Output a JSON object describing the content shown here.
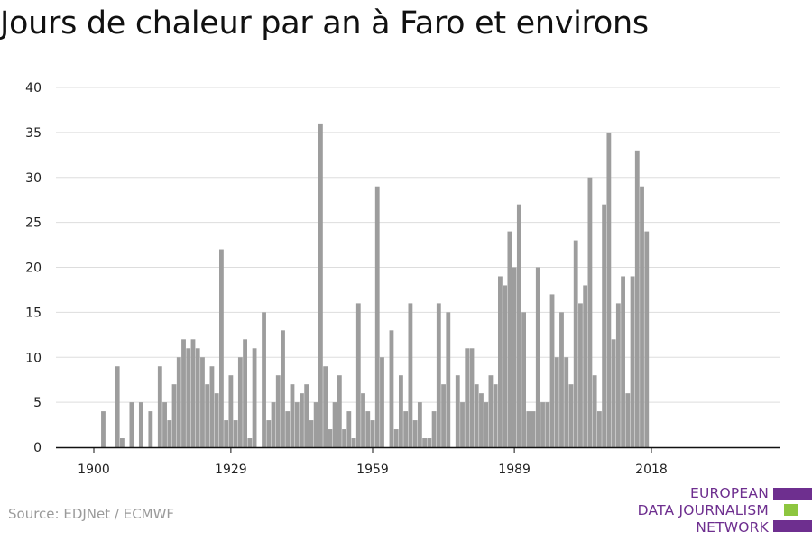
{
  "chart_data": {
    "type": "bar",
    "title": "Jours de chaleur par an à Faro et environs",
    "xlabel": "",
    "ylabel": "",
    "ylim": [
      0,
      40
    ],
    "yticks": [
      0,
      5,
      10,
      15,
      20,
      25,
      30,
      35,
      40
    ],
    "xticks": [
      1900,
      1929,
      1959,
      1989,
      2018
    ],
    "grid": true,
    "bar_color": "#9d9d9d",
    "series": [
      {
        "x": [
          1900,
          1901,
          1902,
          1903,
          1904,
          1905,
          1906,
          1907,
          1908,
          1909,
          1910,
          1911,
          1912,
          1913,
          1914,
          1915,
          1916,
          1917,
          1918,
          1919,
          1920,
          1921,
          1922,
          1923,
          1924,
          1925,
          1926,
          1927,
          1928,
          1929,
          1930,
          1931,
          1932,
          1933,
          1934,
          1935,
          1936,
          1937,
          1938,
          1939,
          1940,
          1941,
          1942,
          1943,
          1944,
          1945,
          1946,
          1947,
          1948,
          1949,
          1950,
          1951,
          1952,
          1953,
          1954,
          1955,
          1956,
          1957,
          1958,
          1959,
          1960,
          1961,
          1962,
          1963,
          1964,
          1965,
          1966,
          1967,
          1968,
          1969,
          1970,
          1971,
          1972,
          1973,
          1974,
          1975,
          1976,
          1977,
          1978,
          1979,
          1980,
          1981,
          1982,
          1983,
          1984,
          1985,
          1986,
          1987,
          1988,
          1989,
          1990,
          1991,
          1992,
          1993,
          1994,
          1995,
          1996,
          1997,
          1998,
          1999,
          2000,
          2001,
          2002,
          2003,
          2004,
          2005,
          2006,
          2007,
          2008,
          2009,
          2010,
          2011,
          2012,
          2013,
          2014,
          2015,
          2016,
          2017,
          2018,
          2019,
          2020
        ],
        "values": [
          0,
          0,
          4,
          0,
          0,
          9,
          1,
          0,
          5,
          0,
          5,
          0,
          4,
          0,
          9,
          5,
          3,
          7,
          10,
          12,
          11,
          12,
          11,
          10,
          7,
          9,
          6,
          22,
          3,
          8,
          3,
          10,
          12,
          1,
          11,
          0,
          15,
          3,
          5,
          8,
          13,
          4,
          7,
          5,
          6,
          7,
          3,
          5,
          36,
          9,
          2,
          5,
          8,
          2,
          4,
          1,
          16,
          6,
          4,
          3,
          29,
          10,
          0,
          13,
          2,
          8,
          4,
          16,
          3,
          5,
          1,
          1,
          4,
          16,
          7,
          15,
          0,
          8,
          5,
          11,
          11,
          7,
          6,
          5,
          8,
          7,
          19,
          18,
          24,
          20,
          27,
          15,
          4,
          4,
          20,
          5,
          5,
          17,
          10,
          15,
          10,
          7,
          23,
          16,
          18,
          30,
          8,
          4,
          27,
          35,
          12,
          16,
          19,
          6,
          19,
          33,
          29,
          24,
          0,
          0,
          0
        ]
      }
    ]
  },
  "footer": {
    "source": "Source: EDJNet / ECMWF",
    "logo_lines": [
      "EUROPEAN",
      "DATA JOURNALISM",
      "NETWORK"
    ],
    "logo_colors": [
      "#6e2f8f",
      "#8dc63f",
      "#6e2f8f"
    ]
  }
}
